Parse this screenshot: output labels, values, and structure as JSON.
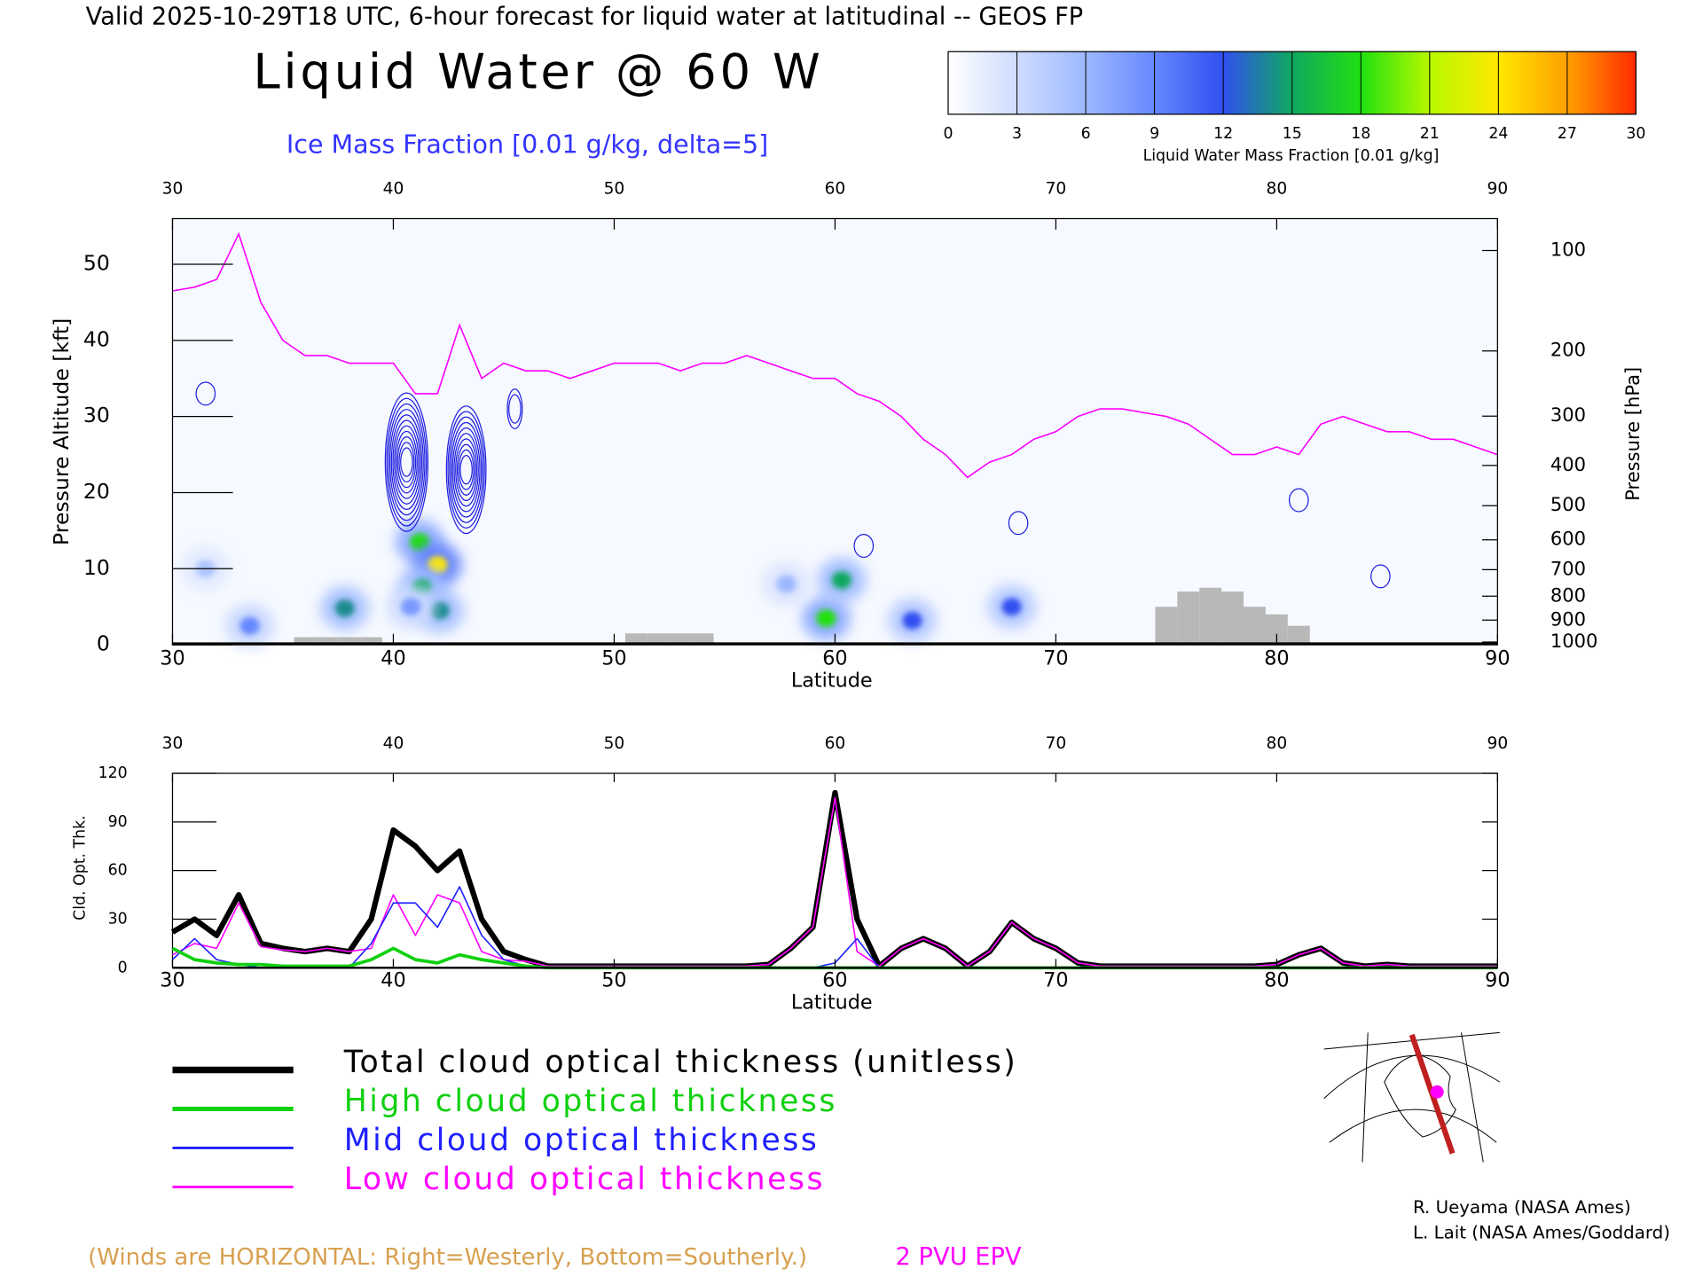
{
  "chart_data": [
    {
      "type": "cross-section",
      "header": "Valid 2025-10-29T18 UTC, 6-hour forecast for liquid water at latitudinal -- GEOS FP",
      "title": "Liquid Water @ 60 W",
      "subtitle": "Ice Mass Fraction [0.01 g/kg, delta=5]",
      "xlabel": "Latitude",
      "ylabel": "Pressure Altitude [kft]",
      "y2label": "Pressure [hPa]",
      "xlim": [
        30,
        90
      ],
      "xticks": [
        30,
        40,
        50,
        60,
        70,
        80,
        90
      ],
      "ylim": [
        0,
        56
      ],
      "yticks": [
        0,
        10,
        20,
        30,
        40,
        50
      ],
      "y2scale": "pressure-altitude",
      "y2ticks": [
        100,
        200,
        300,
        400,
        500,
        600,
        700,
        800,
        900,
        1000
      ],
      "colorbar": {
        "label": "Liquid Water Mass Fraction [0.01 g/kg]",
        "ticks": [
          0,
          3,
          6,
          9,
          12,
          15,
          18,
          21,
          24,
          27,
          30
        ],
        "colors": [
          "#ffffff",
          "#cfdcff",
          "#9cb8ff",
          "#6688ff",
          "#3050f0",
          "#10a860",
          "#20e010",
          "#b8f800",
          "#ffe800",
          "#ffa000",
          "#ff2a00"
        ]
      },
      "liquid": {
        "x": [
          41.2,
          42.0,
          41.3,
          42.1,
          37.8,
          33.5,
          59.6,
          60.3,
          63.5,
          68.0,
          31.5,
          40.8,
          57.8
        ],
        "y": [
          13.5,
          10.5,
          7.5,
          4.5,
          4.8,
          2.5,
          3.5,
          8.5,
          3.2,
          5.0,
          10.0,
          5.0,
          8.0
        ],
        "values": [
          18,
          24,
          15,
          14,
          14,
          9,
          18,
          15,
          12,
          12,
          5,
          8,
          6
        ]
      },
      "ice": {
        "color": "#2020e0",
        "x": [
          40.6,
          43.3,
          31.5,
          45.5,
          61.3,
          81.0,
          68.3,
          84.7
        ],
        "y": [
          24,
          23,
          33,
          31,
          13,
          19,
          16,
          9
        ],
        "values": [
          55,
          50,
          5,
          10,
          5,
          5,
          5,
          5
        ]
      },
      "epv": {
        "name": "2 PVU EPV",
        "color": "#ff00ff",
        "x": [
          30,
          31,
          32,
          33,
          34,
          35,
          36,
          37,
          38,
          39,
          40,
          41,
          42,
          43,
          44,
          45,
          46,
          47,
          48,
          49,
          50,
          51,
          52,
          53,
          54,
          55,
          56,
          57,
          58,
          59,
          60,
          61,
          62,
          63,
          64,
          65,
          66,
          67,
          68,
          69,
          70,
          71,
          72,
          73,
          74,
          75,
          76,
          77,
          78,
          79,
          80,
          81,
          82,
          83,
          84,
          85,
          86,
          87,
          88,
          89,
          90
        ],
        "values": [
          46.5,
          47,
          48,
          54,
          45,
          40,
          38,
          38,
          37,
          37,
          37,
          33,
          33,
          42,
          35,
          37,
          36,
          36,
          35,
          36,
          37,
          37,
          37,
          36,
          37,
          37,
          38,
          37,
          36,
          35,
          35,
          33,
          32,
          30,
          27,
          25,
          22,
          24,
          25,
          27,
          28,
          30,
          31,
          31,
          30.5,
          30,
          29,
          27,
          25,
          25,
          26,
          25,
          29,
          30,
          29,
          28,
          28,
          27,
          27,
          26,
          25
        ]
      },
      "terrain": {
        "color": "#b8b8b8",
        "x": [
          36,
          37,
          38,
          39,
          51,
          52,
          53,
          54,
          75,
          76,
          77,
          78,
          79,
          80,
          81
        ],
        "values": [
          1,
          1,
          1,
          1,
          1.5,
          1.5,
          1.5,
          1.5,
          5,
          7,
          7.5,
          7,
          5,
          4,
          2.5
        ]
      },
      "winds_note": "(Winds are HORIZONTAL: Right=Westerly, Bottom=Southerly.)",
      "credits": [
        "R. Ueyama (NASA Ames)",
        "L. Lait (NASA Ames/Goddard)"
      ]
    },
    {
      "type": "line",
      "ylabel": "Cld. Opt. Thk.",
      "xlabel": "Latitude",
      "xlim": [
        30,
        90
      ],
      "xticks": [
        30,
        40,
        50,
        60,
        70,
        80,
        90
      ],
      "ylim": [
        0,
        120
      ],
      "yticks": [
        0,
        30,
        60,
        90,
        120
      ],
      "x": [
        30,
        31,
        32,
        33,
        34,
        35,
        36,
        37,
        38,
        39,
        40,
        41,
        42,
        43,
        44,
        45,
        46,
        47,
        48,
        49,
        50,
        51,
        52,
        53,
        54,
        55,
        56,
        57,
        58,
        59,
        60,
        61,
        62,
        63,
        64,
        65,
        66,
        67,
        68,
        69,
        70,
        71,
        72,
        73,
        74,
        75,
        76,
        77,
        78,
        79,
        80,
        81,
        82,
        83,
        84,
        85,
        86,
        87,
        88,
        89,
        90
      ],
      "series": [
        {
          "name": "Total cloud optical thickness (unitless)",
          "color": "#000000",
          "width": 5,
          "values": [
            22,
            30,
            20,
            45,
            15,
            12,
            10,
            12,
            10,
            30,
            85,
            75,
            60,
            72,
            30,
            10,
            5,
            1,
            1,
            1,
            1,
            1,
            1,
            1,
            1,
            1,
            1,
            2,
            12,
            25,
            108,
            30,
            1,
            12,
            18,
            12,
            1,
            10,
            28,
            18,
            12,
            3,
            1,
            1,
            1,
            1,
            1,
            1,
            1,
            1,
            2,
            8,
            12,
            3,
            1,
            2,
            1,
            1,
            1,
            1,
            1
          ]
        },
        {
          "name": "Low cloud optical thickness",
          "color": "#ff00ff",
          "width": 1.3,
          "values": [
            8,
            15,
            12,
            40,
            13,
            11,
            10,
            12,
            10,
            12,
            45,
            20,
            45,
            40,
            10,
            5,
            4,
            1,
            1,
            1,
            1,
            1,
            1,
            1,
            1,
            1,
            1,
            2,
            12,
            25,
            105,
            10,
            1,
            12,
            18,
            12,
            1,
            10,
            28,
            18,
            12,
            3,
            1,
            1,
            1,
            1,
            1,
            1,
            1,
            1,
            2,
            8,
            12,
            3,
            1,
            2,
            1,
            1,
            1,
            1,
            1
          ]
        },
        {
          "name": "Mid cloud optical thickness",
          "color": "#2020ff",
          "width": 1.3,
          "values": [
            5,
            18,
            5,
            2,
            0,
            0,
            0,
            0,
            0,
            15,
            40,
            40,
            25,
            50,
            20,
            5,
            1,
            0,
            0,
            0,
            0,
            0,
            0,
            0,
            0,
            0,
            0,
            0,
            0,
            0,
            3,
            18,
            0,
            0,
            0,
            0,
            0,
            0,
            0,
            0,
            0,
            0,
            0,
            0,
            0,
            0,
            0,
            0,
            0,
            0,
            0,
            0,
            0,
            0,
            0,
            0,
            0,
            0,
            0,
            0,
            0
          ]
        },
        {
          "name": "High cloud optical thickness",
          "color": "#10d010",
          "width": 3,
          "values": [
            12,
            5,
            3,
            2,
            2,
            1,
            1,
            1,
            1,
            5,
            12,
            5,
            3,
            8,
            5,
            3,
            1,
            0,
            0,
            0,
            0,
            0,
            0,
            0,
            0,
            0,
            0,
            0,
            0,
            0,
            0,
            0,
            0,
            0,
            0,
            0,
            0,
            0,
            0,
            0,
            0,
            0,
            0,
            0,
            0,
            0,
            0,
            0,
            0,
            0,
            0,
            0,
            0,
            0,
            0,
            0,
            0,
            0,
            0,
            0,
            0
          ]
        }
      ]
    }
  ]
}
